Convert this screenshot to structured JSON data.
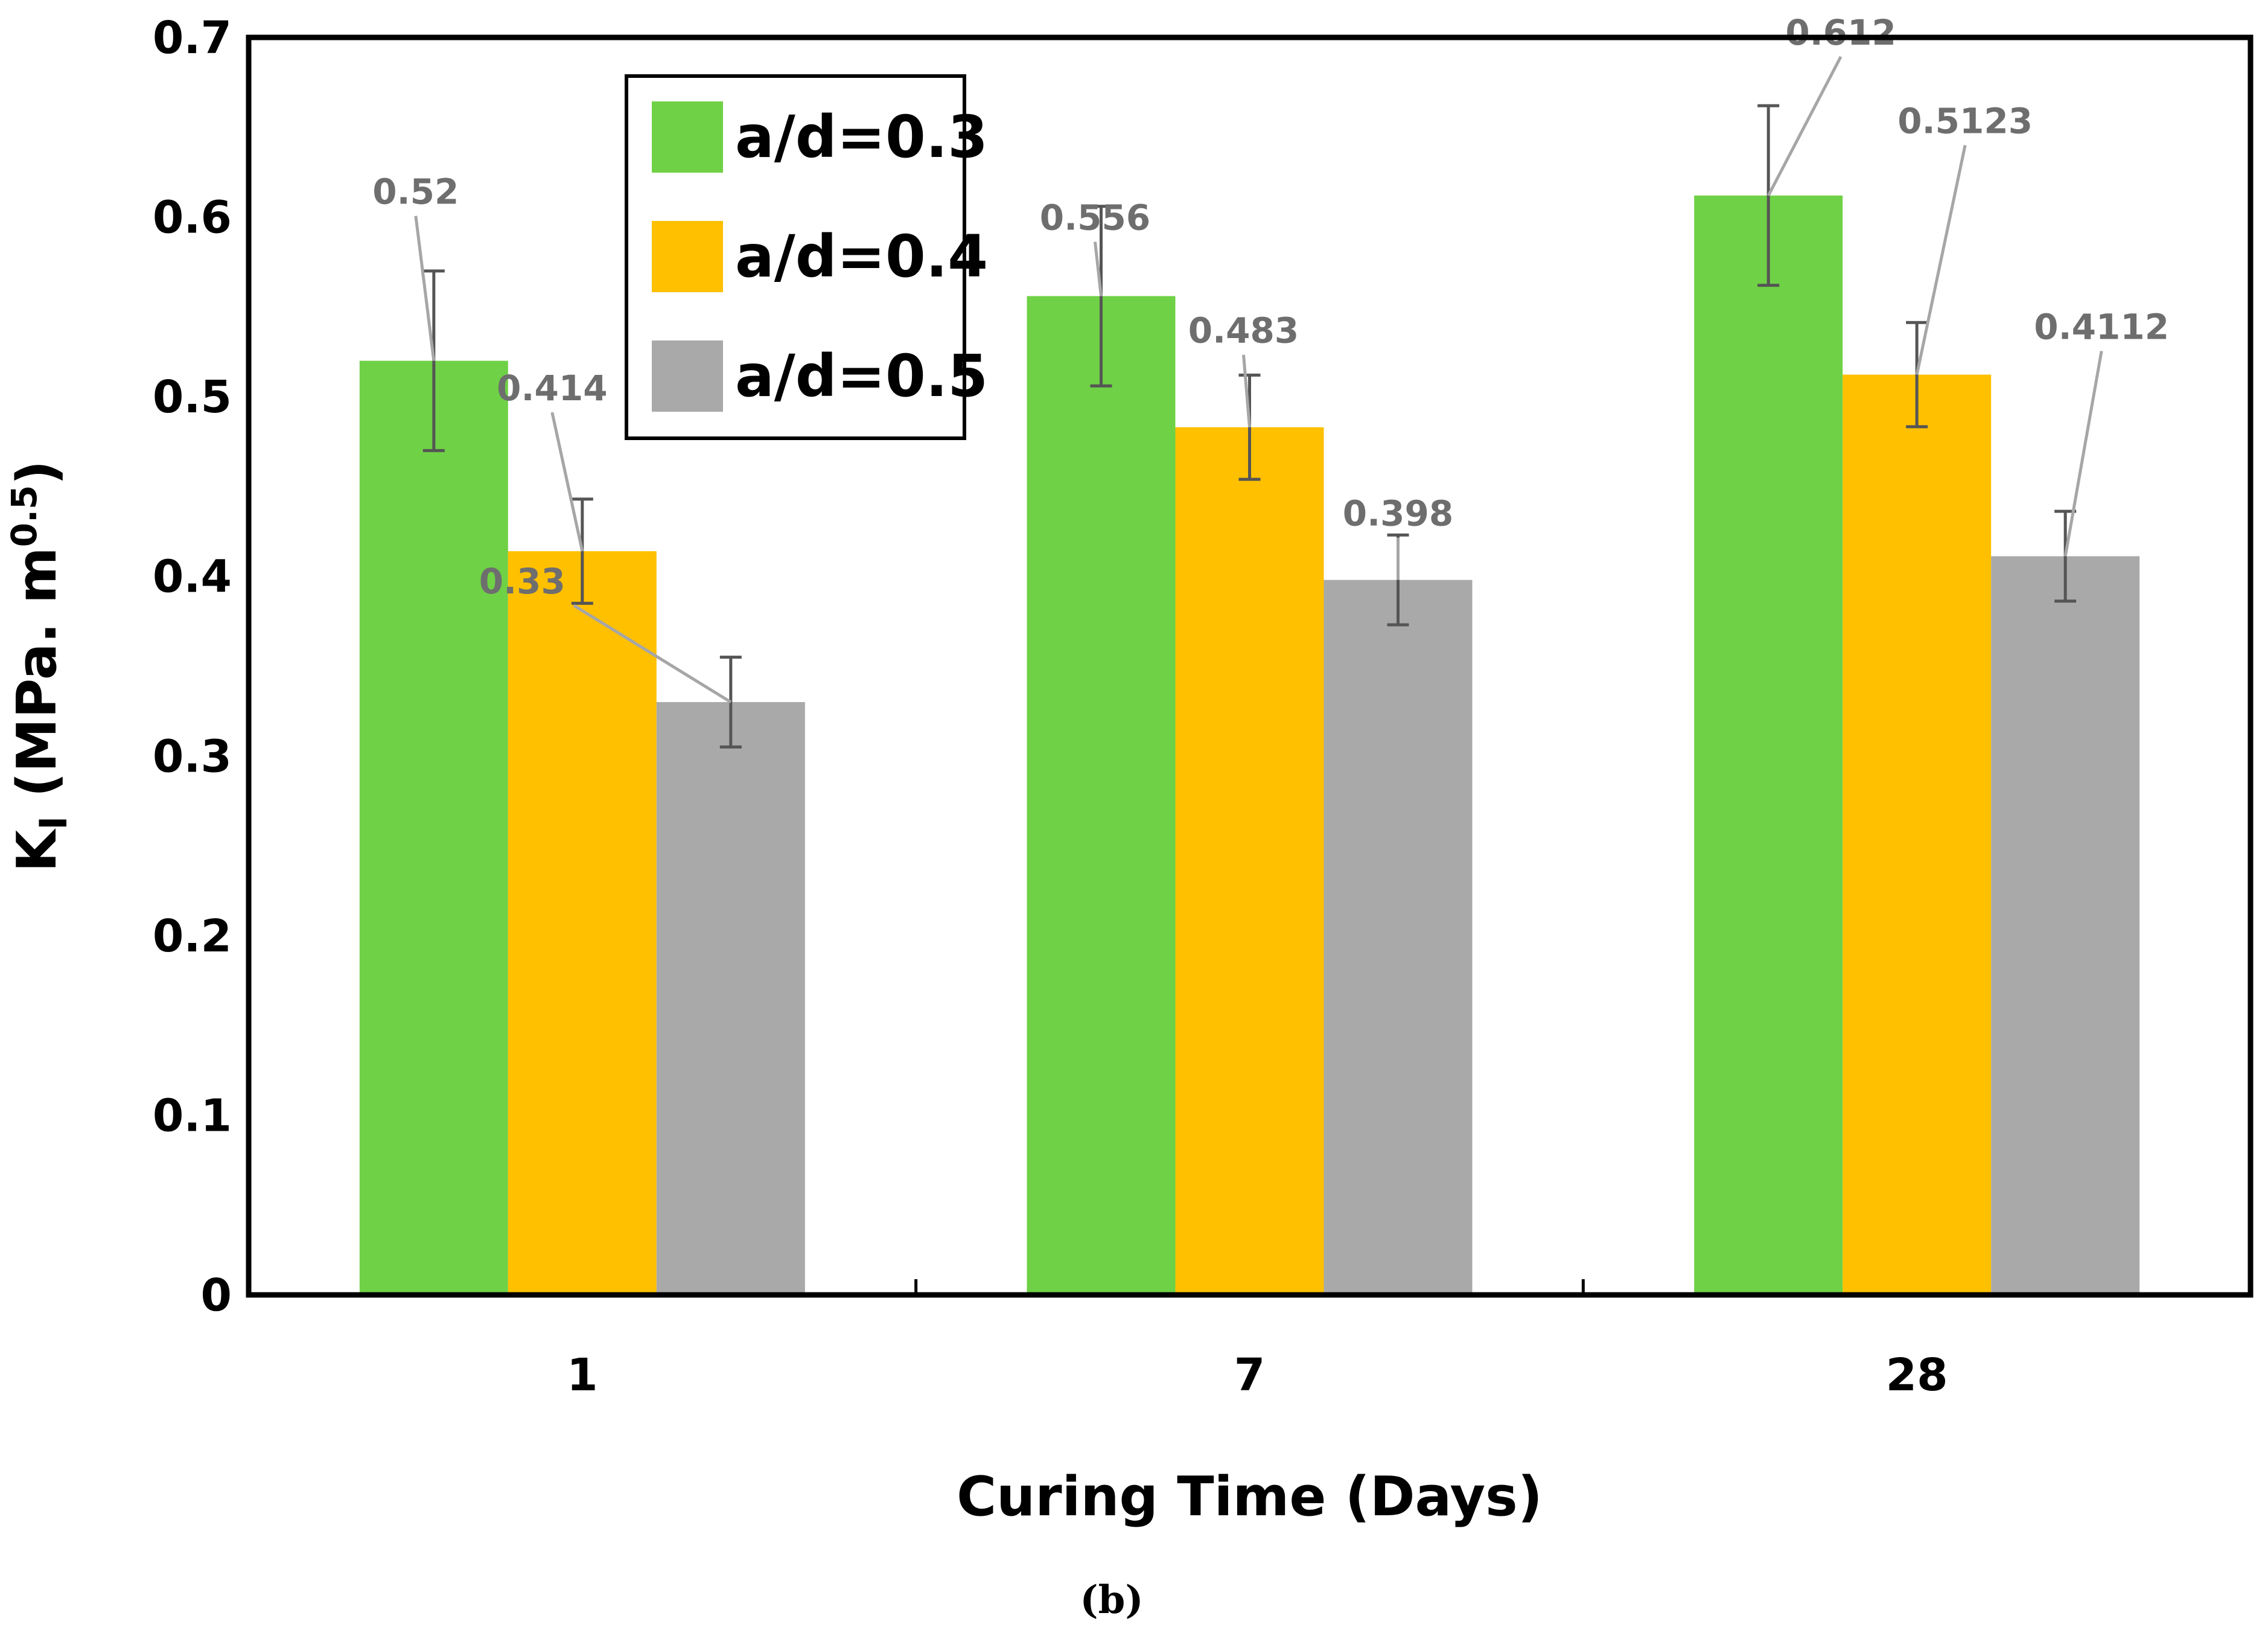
{
  "chart_data": {
    "type": "bar",
    "title": "",
    "xlabel": "Curing Time (Days)",
    "ylabel": {
      "main": "K",
      "sub": "I",
      "units": " (MPa. m",
      "sup": "0.5",
      "close": ")"
    },
    "categories": [
      "1",
      "7",
      "28"
    ],
    "ylim": [
      0,
      0.7
    ],
    "yticks": [
      "0",
      "0.1",
      "0.2",
      "0.3",
      "0.4",
      "0.5",
      "0.6",
      "0.7"
    ],
    "series": [
      {
        "name": "a/d=0.3",
        "color": "#6fd146",
        "values": [
          0.52,
          0.556,
          0.612
        ],
        "errors": [
          0.05,
          0.05,
          0.05
        ],
        "labels": [
          "0.52",
          "0.556",
          "0.612"
        ]
      },
      {
        "name": "a/d=0.4",
        "color": "#ffc000",
        "values": [
          0.414,
          0.483,
          0.5123
        ],
        "errors": [
          0.029,
          0.029,
          0.029
        ],
        "labels": [
          "0.414",
          "0.483",
          "0.5123"
        ]
      },
      {
        "name": "a/d=0.5",
        "color": "#a9a9a9",
        "values": [
          0.33,
          0.398,
          0.4112
        ],
        "errors": [
          0.025,
          0.025,
          0.025
        ],
        "labels": [
          "0.33",
          "0.398",
          "0.4112"
        ]
      }
    ],
    "legend": "top-left",
    "grid": false
  },
  "panel_label": "(b)"
}
